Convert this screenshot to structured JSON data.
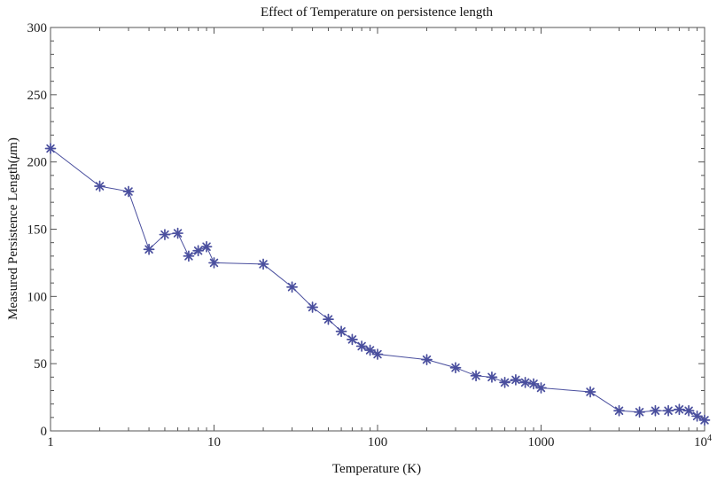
{
  "chart_data": {
    "type": "line",
    "title": "Effect of Temperature on persistence length",
    "xlabel": "Temperature (K)",
    "ylabel_prefix": "Measured Persistence Length(",
    "ylabel_mu": "μ",
    "ylabel_suffix": "m)",
    "xscale": "log",
    "xlim": [
      1,
      10000
    ],
    "ylim": [
      0,
      300
    ],
    "x_ticks": [
      {
        "value": 1,
        "label": "1"
      },
      {
        "value": 10,
        "label": "10"
      },
      {
        "value": 100,
        "label": "100"
      },
      {
        "value": 1000,
        "label": "1000"
      },
      {
        "value": 10000,
        "label": "10",
        "sup": "4"
      }
    ],
    "y_ticks": [
      0,
      50,
      100,
      150,
      200,
      250,
      300
    ],
    "grid": false,
    "marker": "asterisk",
    "line_color": "#4a4f9e",
    "series": [
      {
        "x": [
          1,
          2,
          3,
          4,
          5,
          6,
          7,
          8,
          9,
          10,
          20,
          30,
          40,
          50,
          60,
          70,
          80,
          90,
          100,
          200,
          300,
          400,
          500,
          600,
          700,
          800,
          900,
          1000,
          2000,
          3000,
          4000,
          5000,
          6000,
          7000,
          8000,
          9000,
          10000
        ],
        "y": [
          210,
          182,
          178,
          135,
          146,
          147,
          130,
          134,
          137,
          125,
          124,
          107,
          92,
          83,
          74,
          68,
          63,
          60,
          57,
          53,
          47,
          41,
          40,
          36,
          38,
          36,
          35,
          32,
          29,
          15,
          14,
          15,
          15,
          16,
          15,
          11,
          8
        ]
      }
    ]
  }
}
